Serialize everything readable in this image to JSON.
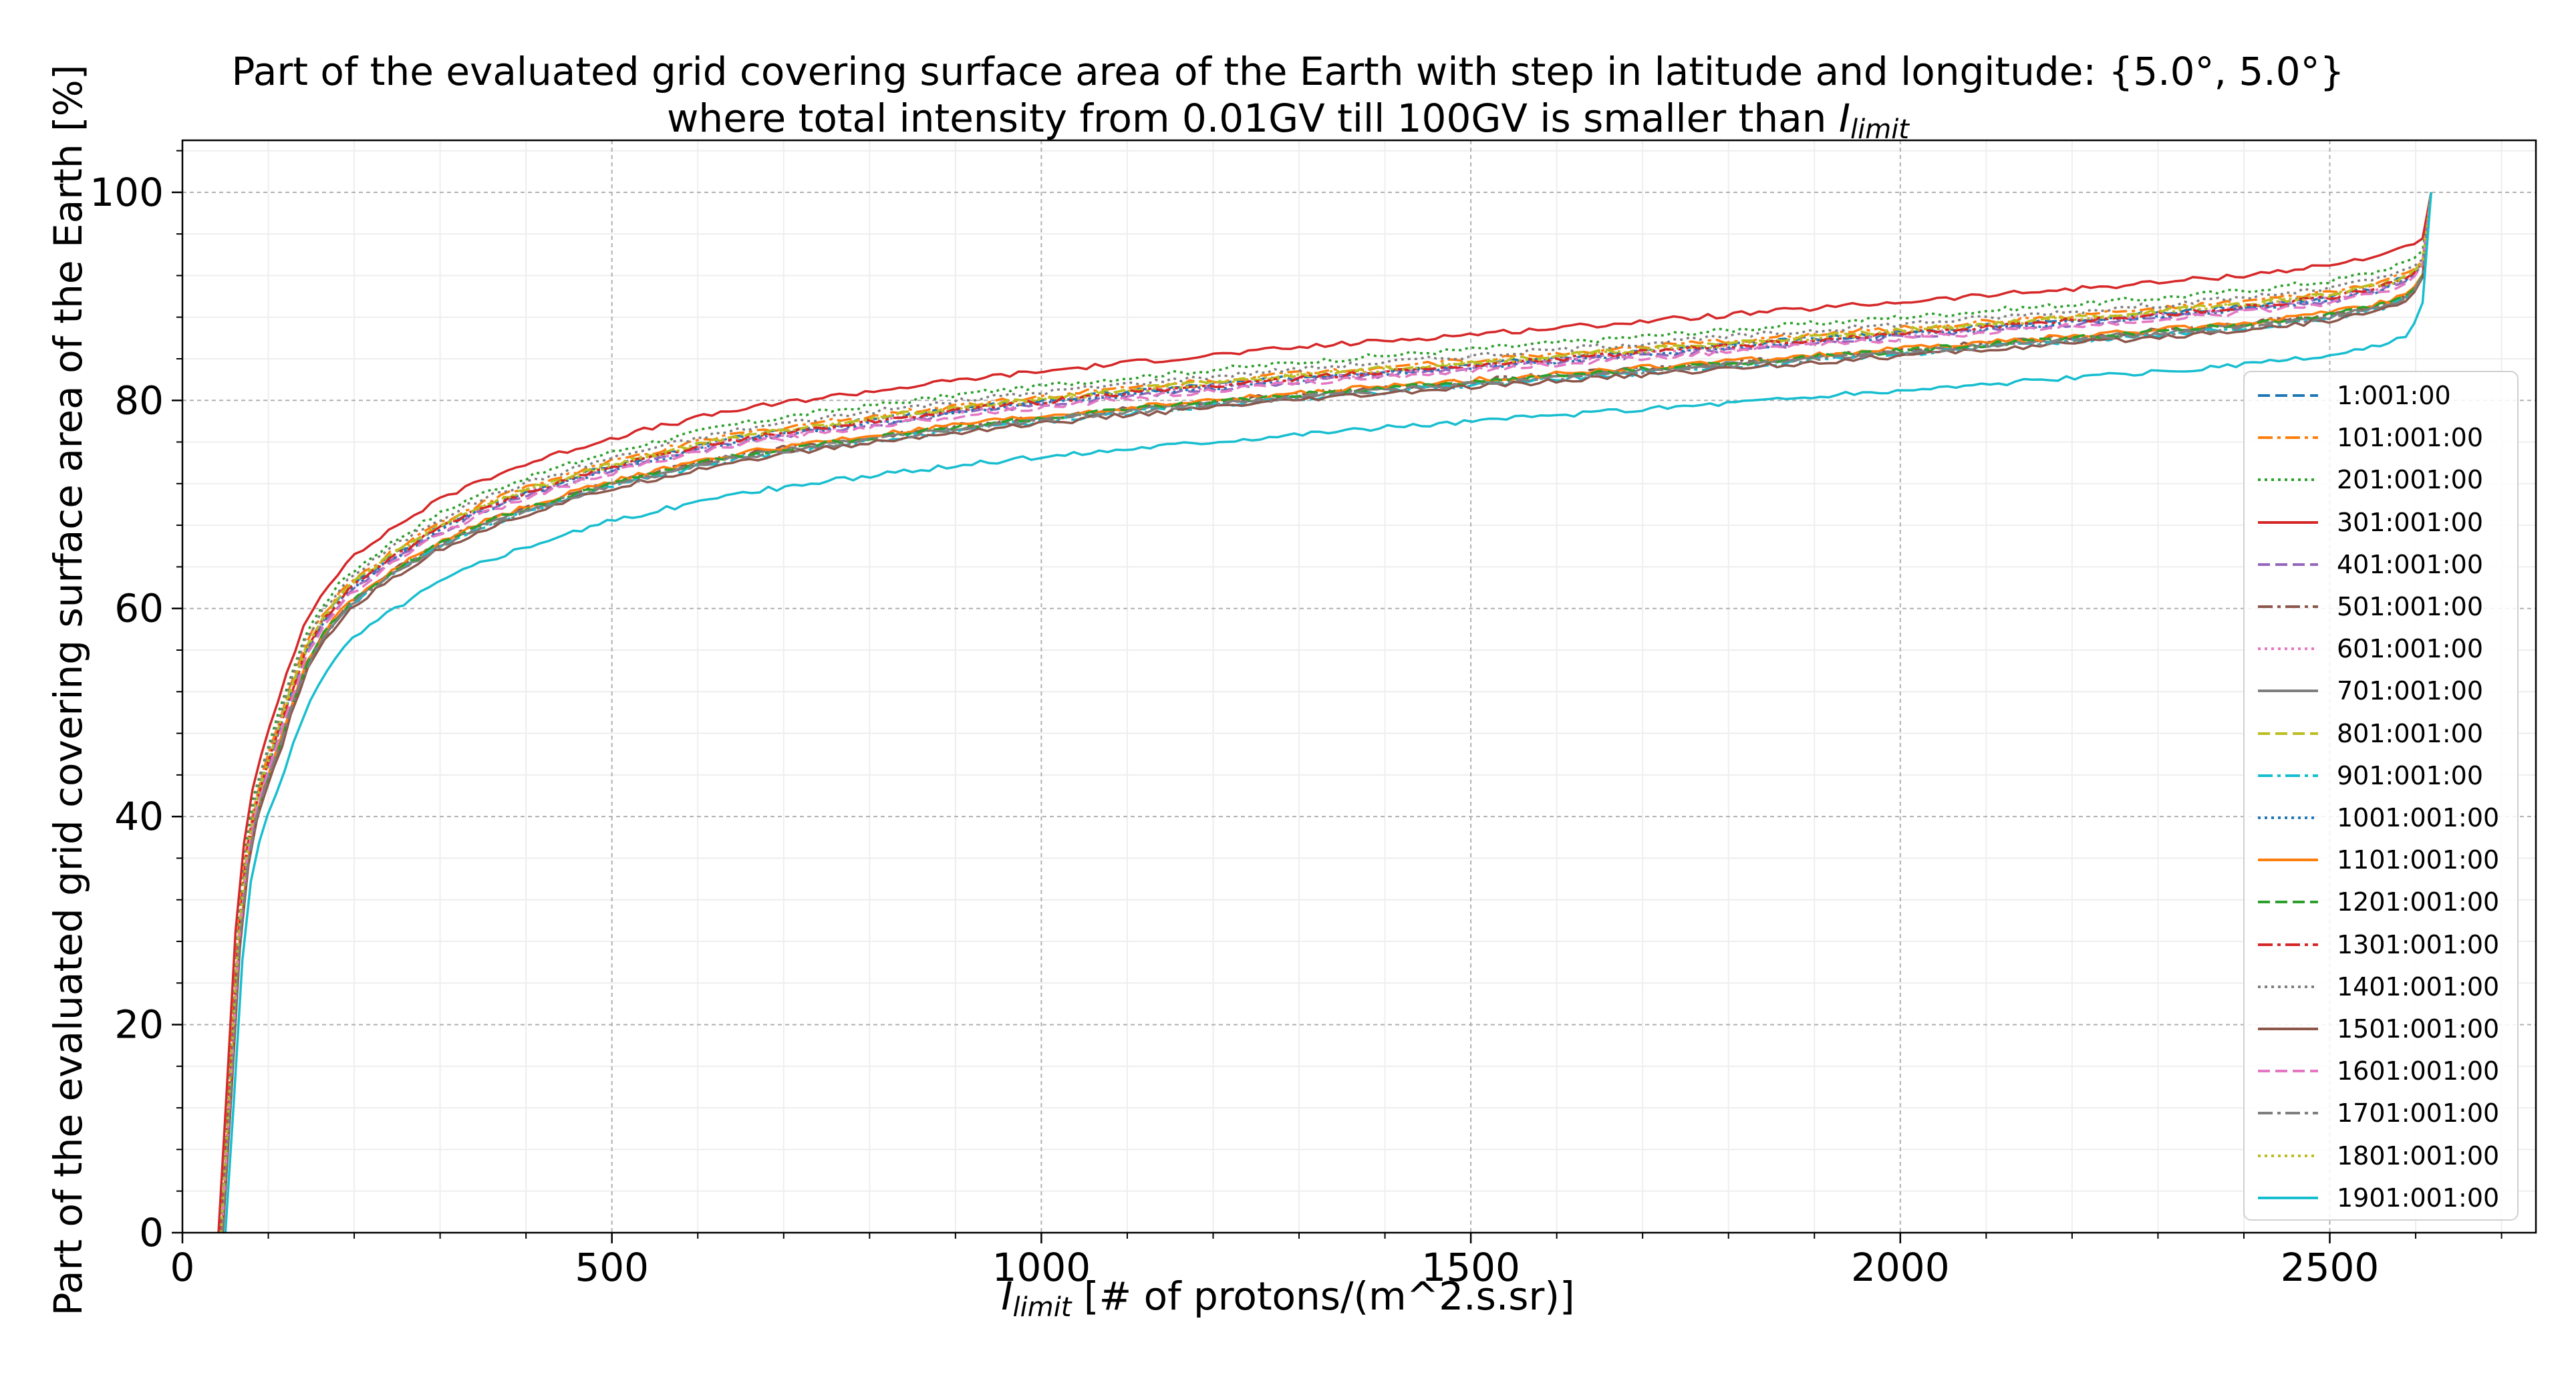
{
  "title": {
    "line1": "Part of the evaluated grid covering surface area of the Earth with step in latitude and longitude: {5.0°, 5.0°}",
    "line2_prefix": "where total intensity from 0.01GV till 100GV is smaller than ",
    "line2_symbol": "I",
    "line2_subscript": "limit"
  },
  "xlabel": {
    "symbol": "I",
    "subscript": "limit",
    "suffix": " [# of protons/(m^2.s.sr)]"
  },
  "ylabel": "Part of the evaluated grid covering surface area of the Earth  [%]",
  "chart_data": {
    "type": "line",
    "title": "Part of the evaluated grid covering surface area of the Earth with step in latitude and longitude: {5.0°, 5.0°} where total intensity from 0.01GV till 100GV is smaller than I_limit",
    "xlabel": "I_limit [# of protons/(m^2.s.sr)]",
    "ylabel": "Part of the evaluated grid covering surface area of the Earth  [%]",
    "xlim": [
      0,
      2740
    ],
    "ylim": [
      0,
      105
    ],
    "xticks": [
      0,
      500,
      1000,
      1500,
      2000,
      2500
    ],
    "yticks": [
      0,
      20,
      40,
      60,
      80,
      100
    ],
    "grid": true,
    "legend_position": "right",
    "series": [
      {
        "name": "1:001:00",
        "color": "#1f77b4",
        "dash": "dashed",
        "x_start": 45,
        "x_end": 2618,
        "scale": 1.0,
        "offset": 0.4
      },
      {
        "name": "101:001:00",
        "color": "#ff7f0e",
        "dash": "dashdot",
        "x_start": 44,
        "x_end": 2618,
        "scale": 1.0,
        "offset": 0.8
      },
      {
        "name": "201:001:00",
        "color": "#2ca02c",
        "dash": "dotted",
        "x_start": 43,
        "x_end": 2618,
        "scale": 1.01,
        "offset": 1.0
      },
      {
        "name": "301:001:00",
        "color": "#d62728",
        "dash": "solid",
        "x_start": 42,
        "x_end": 2618,
        "scale": 1.02,
        "offset": 1.6
      },
      {
        "name": "401:001:00",
        "color": "#9467bd",
        "dash": "dashed",
        "x_start": 46,
        "x_end": 2618,
        "scale": 1.0,
        "offset": 0.0
      },
      {
        "name": "501:001:00",
        "color": "#8c564b",
        "dash": "dashdot",
        "x_start": 46,
        "x_end": 2618,
        "scale": 0.99,
        "offset": -0.4
      },
      {
        "name": "601:001:00",
        "color": "#e377c2",
        "dash": "dotted",
        "x_start": 45,
        "x_end": 2618,
        "scale": 1.0,
        "offset": 0.2
      },
      {
        "name": "701:001:00",
        "color": "#7f7f7f",
        "dash": "solid",
        "x_start": 47,
        "x_end": 2618,
        "scale": 0.99,
        "offset": -0.6
      },
      {
        "name": "801:001:00",
        "color": "#bcbd22",
        "dash": "dashed",
        "x_start": 45,
        "x_end": 2618,
        "scale": 1.0,
        "offset": 0.6
      },
      {
        "name": "901:001:00",
        "color": "#17becf",
        "dash": "dashdot",
        "x_start": 46,
        "x_end": 2618,
        "scale": 0.99,
        "offset": -0.8
      },
      {
        "name": "1001:001:00",
        "color": "#1f77b4",
        "dash": "dotted",
        "x_start": 45,
        "x_end": 2618,
        "scale": 1.0,
        "offset": 0.1
      },
      {
        "name": "1101:001:00",
        "color": "#ff7f0e",
        "dash": "solid",
        "x_start": 46,
        "x_end": 2618,
        "scale": 0.99,
        "offset": -0.3
      },
      {
        "name": "1201:001:00",
        "color": "#2ca02c",
        "dash": "dashed",
        "x_start": 46,
        "x_end": 2618,
        "scale": 0.99,
        "offset": -0.5
      },
      {
        "name": "1301:001:00",
        "color": "#d62728",
        "dash": "dashdot",
        "x_start": 45,
        "x_end": 2618,
        "scale": 1.0,
        "offset": 0.3
      },
      {
        "name": "1401:001:00",
        "color": "#7f7f7f",
        "dash": "dotted",
        "x_start": 44,
        "x_end": 2618,
        "scale": 1.0,
        "offset": 1.2
      },
      {
        "name": "1501:001:00",
        "color": "#8c564b",
        "dash": "solid",
        "x_start": 47,
        "x_end": 2618,
        "scale": 0.99,
        "offset": -1.0
      },
      {
        "name": "1601:001:00",
        "color": "#e377c2",
        "dash": "dashed",
        "x_start": 46,
        "x_end": 2618,
        "scale": 1.0,
        "offset": -0.2
      },
      {
        "name": "1701:001:00",
        "color": "#7f7f7f",
        "dash": "dashdot",
        "x_start": 46,
        "x_end": 2618,
        "scale": 0.99,
        "offset": -0.7
      },
      {
        "name": "1801:001:00",
        "color": "#bcbd22",
        "dash": "dotted",
        "x_start": 45,
        "x_end": 2618,
        "scale": 1.0,
        "offset": 0.5
      },
      {
        "name": "1901:001:00",
        "color": "#17becf",
        "dash": "solid",
        "x_start": 50,
        "x_end": 2618,
        "scale": 0.97,
        "offset": -2.6
      }
    ],
    "base_curve": {
      "x": [
        0,
        8,
        15,
        22,
        30,
        40,
        50,
        65,
        80,
        100,
        120,
        150,
        200,
        250,
        300,
        350,
        400,
        450,
        500,
        600,
        700,
        800,
        900,
        1000,
        1100,
        1200,
        1300,
        1400,
        1500,
        1600,
        1700,
        1800,
        1900,
        2000,
        2100,
        2200,
        2300,
        2400,
        2500,
        2560,
        2590,
        2605,
        2612,
        2616,
        2618
      ],
      "y": [
        0,
        10,
        22,
        30,
        36,
        40.5,
        43.5,
        47,
        51,
        55.5,
        58.5,
        61.5,
        64.5,
        67,
        69,
        70.5,
        71.8,
        73,
        74,
        75.8,
        77,
        78,
        79,
        79.8,
        80.6,
        81.3,
        82,
        82.6,
        83.2,
        83.8,
        84.4,
        85,
        85.6,
        86.2,
        86.8,
        87.4,
        88,
        88.7,
        89.6,
        90.6,
        91.5,
        92.5,
        94,
        97,
        100
      ]
    }
  }
}
